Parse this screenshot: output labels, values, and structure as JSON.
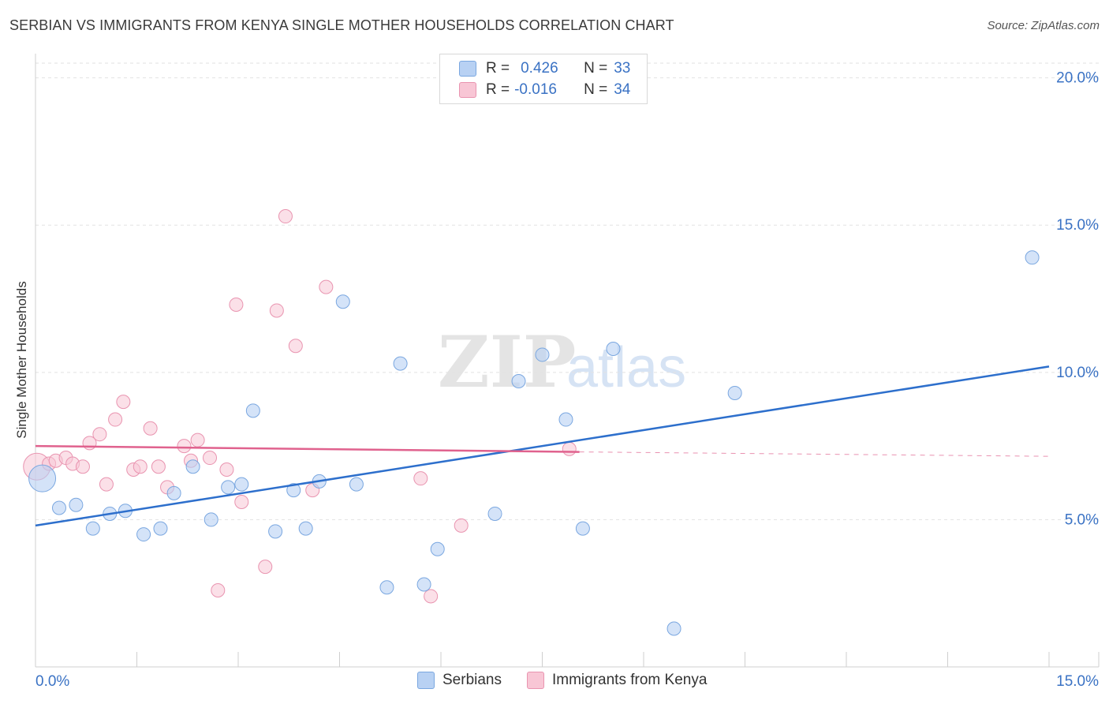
{
  "title": "SERBIAN VS IMMIGRANTS FROM KENYA SINGLE MOTHER HOUSEHOLDS CORRELATION CHART",
  "source": "Source: ZipAtlas.com",
  "watermark": {
    "zip": "ZIP",
    "atlas": "atlas"
  },
  "legend": {
    "rows": [
      {
        "r_label": "R =",
        "r_value": "0.426",
        "n_label": "N =",
        "n_value": "33"
      },
      {
        "r_label": "R =",
        "r_value": "-0.016",
        "n_label": "N =",
        "n_value": "34"
      }
    ]
  },
  "colors": {
    "serbians_fill": "#b8d1f3",
    "serbians_stroke": "#7aa7e0",
    "serbians_line": "#2d6fcc",
    "kenya_fill": "#f8c6d5",
    "kenya_stroke": "#e994b0",
    "kenya_line": "#e0628e",
    "axis_text": "#3a72c4"
  },
  "chart_data": {
    "type": "scatter",
    "title": "SERBIAN VS IMMIGRANTS FROM KENYA SINGLE MOTHER HOUSEHOLDS CORRELATION CHART",
    "xlabel": "",
    "ylabel": "Single Mother Households",
    "xlim": [
      0,
      15
    ],
    "ylim": [
      0,
      20.5
    ],
    "x_tick_labels": [
      "0.0%",
      "15.0%"
    ],
    "y_ticks": [
      5,
      10,
      15,
      20
    ],
    "y_tick_labels": [
      "5.0%",
      "10.0%",
      "15.0%",
      "20.0%"
    ],
    "grid": true,
    "legend_position": "bottom",
    "series": [
      {
        "name": "Serbians",
        "color": "#b8d1f3",
        "points": [
          [
            0.1,
            6.4
          ],
          [
            0.35,
            5.4
          ],
          [
            0.6,
            5.5
          ],
          [
            0.85,
            4.7
          ],
          [
            1.1,
            5.2
          ],
          [
            1.33,
            5.3
          ],
          [
            1.6,
            4.5
          ],
          [
            1.85,
            4.7
          ],
          [
            2.05,
            5.9
          ],
          [
            2.33,
            6.8
          ],
          [
            2.6,
            5.0
          ],
          [
            2.85,
            6.1
          ],
          [
            3.05,
            6.2
          ],
          [
            3.22,
            8.7
          ],
          [
            3.55,
            4.6
          ],
          [
            3.82,
            6.0
          ],
          [
            4.0,
            4.7
          ],
          [
            4.2,
            6.3
          ],
          [
            4.55,
            12.4
          ],
          [
            4.75,
            6.2
          ],
          [
            5.2,
            2.7
          ],
          [
            5.4,
            10.3
          ],
          [
            5.75,
            2.8
          ],
          [
            5.95,
            4.0
          ],
          [
            6.8,
            5.2
          ],
          [
            7.15,
            9.7
          ],
          [
            7.5,
            10.6
          ],
          [
            7.85,
            8.4
          ],
          [
            8.1,
            4.7
          ],
          [
            8.55,
            10.8
          ],
          [
            9.45,
            1.3
          ],
          [
            10.35,
            9.3
          ],
          [
            14.75,
            13.9
          ]
        ],
        "trend": {
          "x": [
            0,
            15
          ],
          "y": [
            4.8,
            10.2
          ]
        }
      },
      {
        "name": "Immigrants from Kenya",
        "color": "#f8c6d5",
        "points": [
          [
            0.02,
            6.8
          ],
          [
            0.2,
            6.9
          ],
          [
            0.3,
            7.0
          ],
          [
            0.45,
            7.1
          ],
          [
            0.55,
            6.9
          ],
          [
            0.7,
            6.8
          ],
          [
            0.8,
            7.6
          ],
          [
            0.95,
            7.9
          ],
          [
            1.05,
            6.2
          ],
          [
            1.18,
            8.4
          ],
          [
            1.3,
            9.0
          ],
          [
            1.45,
            6.7
          ],
          [
            1.55,
            6.8
          ],
          [
            1.7,
            8.1
          ],
          [
            1.82,
            6.8
          ],
          [
            1.95,
            6.1
          ],
          [
            2.2,
            7.5
          ],
          [
            2.3,
            7.0
          ],
          [
            2.4,
            7.7
          ],
          [
            2.58,
            7.1
          ],
          [
            2.7,
            2.6
          ],
          [
            2.83,
            6.7
          ],
          [
            2.97,
            12.3
          ],
          [
            3.05,
            5.6
          ],
          [
            3.4,
            3.4
          ],
          [
            3.57,
            12.1
          ],
          [
            3.7,
            15.3
          ],
          [
            3.85,
            10.9
          ],
          [
            4.1,
            6.0
          ],
          [
            4.3,
            12.9
          ],
          [
            5.7,
            6.4
          ],
          [
            5.85,
            2.4
          ],
          [
            6.3,
            4.8
          ],
          [
            7.9,
            7.4
          ]
        ],
        "trend": {
          "x": [
            0,
            8.05
          ],
          "y": [
            7.5,
            7.3
          ],
          "dashed_to": [
            15,
            7.15
          ]
        }
      }
    ]
  },
  "bottom_legend": [
    {
      "label": "Serbians"
    },
    {
      "label": "Immigrants from Kenya"
    }
  ]
}
